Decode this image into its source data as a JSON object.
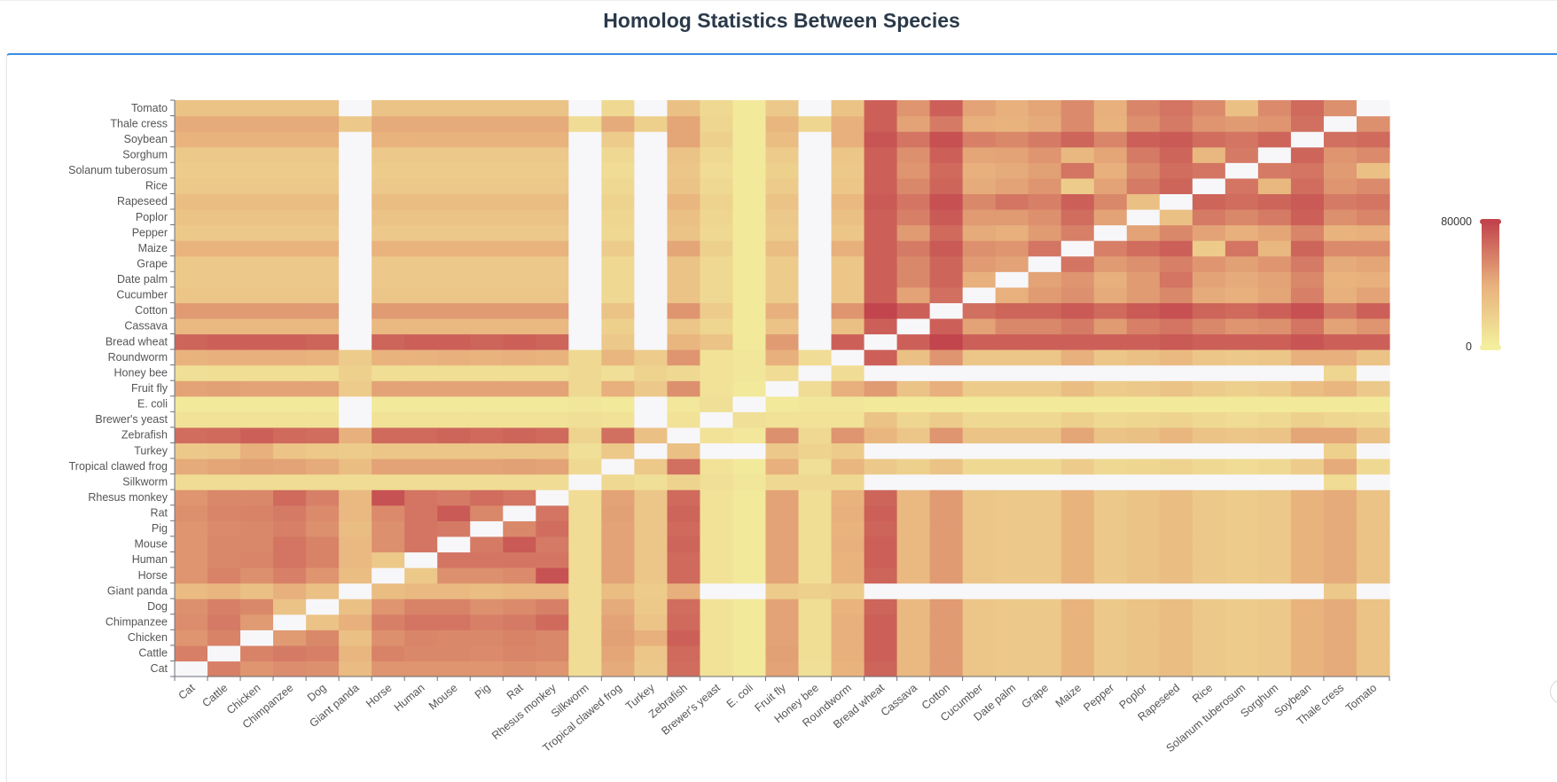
{
  "page": {
    "title": "Homolog Statistics Between Species"
  },
  "colors": {
    "low": "#f3ef9e",
    "mid": "#e8b07c",
    "high": "#c2454d",
    "nodata": "#f7f7fa",
    "accent": "#3a8ee6",
    "label": "#555555"
  },
  "chart_data": {
    "type": "heatmap",
    "title": "Homolog Statistics Between Species",
    "xlabel": "",
    "ylabel": "",
    "species": [
      "Cat",
      "Cattle",
      "Chicken",
      "Chimpanzee",
      "Dog",
      "Giant panda",
      "Horse",
      "Human",
      "Mouse",
      "Pig",
      "Rat",
      "Rhesus monkey",
      "Silkworm",
      "Tropical clawed frog",
      "Turkey",
      "Zebrafish",
      "Brewer's yeast",
      "E. coli",
      "Fruit fly",
      "Honey bee",
      "Roundworm",
      "Bread wheat",
      "Cassava",
      "Cotton",
      "Cucumber",
      "Date palm",
      "Grape",
      "Maize",
      "Pepper",
      "Poplor",
      "Rapeseed",
      "Rice",
      "Solanum tuberosum",
      "Sorghum",
      "Soybean",
      "Thale cress",
      "Tomato"
    ],
    "x_order": "species in listed order, left to right",
    "y_order": "species in listed order, bottom to top (Cat at bottom, Tomato at top)",
    "visual_map": {
      "min": 0,
      "max": 80000,
      "min_label": "0",
      "max_label": "80000",
      "colors": [
        "#f3ef9e",
        "#e8b07c",
        "#c2454d"
      ]
    },
    "matrix": [
      [
        null,
        58,
        50,
        53,
        52,
        33,
        50,
        50,
        50,
        50,
        52,
        50,
        12,
        42,
        24,
        65,
        8,
        4,
        45,
        10,
        38,
        68,
        34,
        48,
        26,
        24,
        24,
        38,
        24,
        28,
        32,
        24,
        22,
        24,
        38,
        42,
        28
      ],
      [
        58,
        null,
        57,
        60,
        58,
        36,
        57,
        55,
        55,
        54,
        56,
        55,
        12,
        44,
        26,
        66,
        8,
        4,
        46,
        11,
        40,
        70,
        34,
        48,
        26,
        24,
        24,
        38,
        24,
        28,
        32,
        24,
        22,
        24,
        38,
        42,
        28
      ],
      [
        50,
        57,
        null,
        48,
        55,
        30,
        52,
        56,
        55,
        55,
        57,
        55,
        12,
        46,
        40,
        70,
        8,
        4,
        45,
        11,
        40,
        70,
        34,
        48,
        26,
        24,
        24,
        38,
        24,
        28,
        32,
        24,
        22,
        24,
        38,
        42,
        28
      ],
      [
        53,
        60,
        48,
        null,
        28,
        40,
        58,
        62,
        62,
        58,
        60,
        66,
        12,
        45,
        27,
        66,
        8,
        4,
        45,
        11,
        40,
        70,
        34,
        48,
        26,
        24,
        24,
        38,
        24,
        28,
        32,
        24,
        22,
        24,
        38,
        42,
        28
      ],
      [
        52,
        58,
        55,
        28,
        null,
        30,
        50,
        57,
        57,
        52,
        54,
        58,
        12,
        42,
        25,
        65,
        8,
        4,
        45,
        11,
        38,
        68,
        34,
        48,
        26,
        24,
        24,
        38,
        24,
        28,
        32,
        24,
        22,
        24,
        38,
        42,
        28
      ],
      [
        33,
        36,
        30,
        40,
        30,
        null,
        32,
        34,
        34,
        32,
        34,
        34,
        12,
        32,
        22,
        40,
        null,
        null,
        22,
        20,
        22,
        null,
        null,
        null,
        null,
        null,
        null,
        null,
        null,
        null,
        null,
        null,
        null,
        null,
        null,
        24,
        null
      ],
      [
        50,
        57,
        52,
        58,
        50,
        32,
        null,
        25,
        52,
        52,
        54,
        75,
        12,
        45,
        26,
        66,
        8,
        4,
        45,
        11,
        38,
        68,
        34,
        48,
        26,
        24,
        24,
        38,
        24,
        28,
        32,
        24,
        22,
        24,
        38,
        42,
        28
      ],
      [
        50,
        55,
        56,
        62,
        57,
        34,
        25,
        null,
        62,
        62,
        62,
        62,
        12,
        45,
        26,
        66,
        8,
        4,
        45,
        11,
        38,
        70,
        34,
        48,
        26,
        24,
        24,
        38,
        24,
        28,
        32,
        24,
        22,
        24,
        38,
        42,
        28
      ],
      [
        50,
        55,
        55,
        62,
        57,
        34,
        52,
        62,
        null,
        60,
        72,
        60,
        12,
        45,
        26,
        68,
        8,
        4,
        45,
        11,
        40,
        70,
        34,
        48,
        26,
        24,
        24,
        38,
        24,
        28,
        32,
        24,
        22,
        24,
        38,
        42,
        28
      ],
      [
        50,
        54,
        55,
        58,
        52,
        32,
        52,
        62,
        60,
        null,
        55,
        65,
        12,
        45,
        26,
        66,
        8,
        4,
        45,
        11,
        38,
        68,
        34,
        48,
        26,
        24,
        24,
        38,
        24,
        28,
        32,
        24,
        22,
        24,
        38,
        42,
        28
      ],
      [
        52,
        56,
        57,
        60,
        54,
        34,
        54,
        62,
        72,
        55,
        null,
        62,
        12,
        46,
        26,
        68,
        8,
        4,
        45,
        11,
        40,
        70,
        34,
        48,
        26,
        24,
        24,
        38,
        24,
        28,
        32,
        24,
        22,
        24,
        38,
        42,
        28
      ],
      [
        50,
        55,
        55,
        66,
        58,
        34,
        75,
        62,
        60,
        65,
        62,
        null,
        12,
        45,
        26,
        66,
        8,
        4,
        45,
        11,
        38,
        68,
        34,
        48,
        26,
        24,
        24,
        38,
        24,
        28,
        32,
        24,
        22,
        24,
        38,
        42,
        28
      ],
      [
        12,
        12,
        12,
        12,
        12,
        12,
        12,
        12,
        12,
        12,
        12,
        12,
        null,
        14,
        10,
        18,
        10,
        6,
        14,
        14,
        14,
        null,
        null,
        null,
        null,
        null,
        null,
        null,
        null,
        null,
        null,
        null,
        null,
        null,
        null,
        12,
        null
      ],
      [
        42,
        44,
        46,
        45,
        42,
        32,
        45,
        45,
        45,
        45,
        46,
        45,
        14,
        null,
        25,
        64,
        8,
        4,
        40,
        10,
        36,
        24,
        20,
        28,
        14,
        14,
        14,
        22,
        14,
        16,
        18,
        14,
        12,
        14,
        22,
        42,
        14
      ],
      [
        24,
        26,
        40,
        27,
        25,
        22,
        26,
        26,
        26,
        26,
        26,
        26,
        10,
        25,
        null,
        30,
        null,
        null,
        24,
        18,
        22,
        null,
        null,
        null,
        null,
        null,
        null,
        null,
        null,
        null,
        null,
        null,
        null,
        null,
        null,
        20,
        null
      ],
      [
        65,
        66,
        70,
        66,
        65,
        40,
        66,
        66,
        68,
        66,
        68,
        66,
        18,
        64,
        30,
        null,
        8,
        5,
        52,
        14,
        50,
        36,
        26,
        50,
        28,
        28,
        28,
        44,
        28,
        30,
        36,
        28,
        26,
        28,
        44,
        44,
        30
      ],
      [
        8,
        8,
        8,
        8,
        8,
        null,
        8,
        8,
        8,
        8,
        8,
        8,
        10,
        8,
        null,
        8,
        null,
        10,
        8,
        8,
        8,
        28,
        16,
        22,
        14,
        14,
        14,
        20,
        14,
        16,
        18,
        14,
        12,
        14,
        20,
        16,
        14
      ],
      [
        4,
        4,
        4,
        4,
        4,
        null,
        4,
        4,
        4,
        4,
        4,
        4,
        6,
        4,
        null,
        5,
        10,
        null,
        4,
        6,
        6,
        4,
        4,
        4,
        4,
        4,
        4,
        4,
        4,
        4,
        4,
        4,
        4,
        4,
        4,
        4,
        4
      ],
      [
        45,
        46,
        45,
        45,
        45,
        22,
        45,
        45,
        45,
        45,
        45,
        45,
        14,
        40,
        24,
        52,
        8,
        4,
        null,
        12,
        40,
        48,
        28,
        40,
        22,
        22,
        22,
        32,
        22,
        24,
        28,
        22,
        20,
        22,
        32,
        36,
        24
      ],
      [
        10,
        11,
        11,
        11,
        11,
        20,
        11,
        11,
        11,
        11,
        11,
        11,
        14,
        10,
        18,
        14,
        8,
        6,
        12,
        null,
        12,
        null,
        null,
        null,
        null,
        null,
        null,
        null,
        null,
        null,
        null,
        null,
        null,
        null,
        null,
        16,
        null
      ],
      [
        38,
        40,
        40,
        40,
        38,
        22,
        38,
        38,
        40,
        38,
        40,
        38,
        14,
        36,
        22,
        50,
        8,
        6,
        40,
        12,
        null,
        70,
        30,
        50,
        26,
        26,
        26,
        40,
        26,
        30,
        34,
        26,
        24,
        26,
        40,
        40,
        28
      ],
      [
        68,
        70,
        70,
        70,
        68,
        null,
        68,
        70,
        70,
        68,
        70,
        68,
        null,
        24,
        null,
        36,
        28,
        4,
        48,
        null,
        70,
        null,
        70,
        80,
        70,
        70,
        70,
        70,
        70,
        70,
        72,
        70,
        70,
        70,
        74,
        70,
        70
      ],
      [
        34,
        34,
        34,
        34,
        34,
        null,
        34,
        34,
        34,
        34,
        34,
        34,
        null,
        20,
        null,
        26,
        16,
        4,
        28,
        null,
        30,
        70,
        null,
        70,
        45,
        55,
        55,
        60,
        48,
        58,
        62,
        55,
        50,
        52,
        62,
        45,
        50
      ],
      [
        48,
        48,
        48,
        48,
        48,
        null,
        48,
        48,
        48,
        48,
        48,
        48,
        null,
        28,
        null,
        50,
        22,
        4,
        40,
        null,
        50,
        80,
        70,
        null,
        64,
        68,
        68,
        72,
        66,
        72,
        76,
        68,
        66,
        70,
        76,
        60,
        70
      ],
      [
        26,
        26,
        26,
        26,
        26,
        null,
        26,
        26,
        26,
        26,
        26,
        26,
        null,
        14,
        null,
        28,
        14,
        4,
        22,
        null,
        26,
        70,
        45,
        64,
        null,
        40,
        48,
        52,
        42,
        48,
        55,
        42,
        40,
        44,
        58,
        40,
        45
      ],
      [
        24,
        24,
        24,
        24,
        24,
        null,
        24,
        24,
        24,
        24,
        24,
        24,
        null,
        14,
        null,
        28,
        14,
        4,
        22,
        null,
        26,
        70,
        55,
        68,
        40,
        null,
        45,
        50,
        40,
        48,
        62,
        45,
        42,
        45,
        55,
        38,
        40
      ],
      [
        24,
        24,
        24,
        24,
        24,
        null,
        24,
        24,
        24,
        24,
        24,
        24,
        null,
        14,
        null,
        28,
        14,
        4,
        22,
        null,
        26,
        70,
        55,
        68,
        48,
        45,
        null,
        62,
        48,
        52,
        58,
        50,
        46,
        50,
        60,
        42,
        44
      ],
      [
        38,
        38,
        38,
        38,
        38,
        null,
        38,
        38,
        38,
        38,
        38,
        38,
        null,
        22,
        null,
        44,
        20,
        4,
        32,
        null,
        40,
        70,
        60,
        72,
        52,
        50,
        62,
        null,
        58,
        65,
        70,
        22,
        62,
        35,
        68,
        54,
        54
      ],
      [
        24,
        24,
        24,
        24,
        24,
        null,
        24,
        24,
        24,
        24,
        24,
        24,
        null,
        14,
        null,
        28,
        14,
        4,
        22,
        null,
        26,
        70,
        48,
        66,
        42,
        40,
        48,
        58,
        null,
        45,
        55,
        45,
        40,
        44,
        56,
        38,
        40
      ],
      [
        28,
        28,
        28,
        28,
        28,
        null,
        28,
        28,
        28,
        28,
        28,
        28,
        null,
        16,
        null,
        30,
        16,
        4,
        24,
        null,
        30,
        70,
        58,
        72,
        48,
        48,
        52,
        65,
        45,
        null,
        30,
        60,
        55,
        60,
        70,
        52,
        56
      ],
      [
        32,
        32,
        32,
        32,
        32,
        null,
        32,
        32,
        32,
        32,
        32,
        32,
        null,
        18,
        null,
        36,
        18,
        4,
        28,
        null,
        34,
        72,
        62,
        76,
        55,
        62,
        58,
        70,
        55,
        30,
        null,
        68,
        65,
        68,
        72,
        60,
        62
      ],
      [
        24,
        24,
        24,
        24,
        24,
        null,
        24,
        24,
        24,
        24,
        24,
        24,
        null,
        14,
        null,
        28,
        14,
        4,
        22,
        null,
        26,
        70,
        55,
        68,
        42,
        45,
        50,
        22,
        45,
        60,
        68,
        null,
        62,
        35,
        65,
        50,
        54
      ],
      [
        22,
        22,
        22,
        22,
        22,
        null,
        22,
        22,
        22,
        22,
        22,
        22,
        null,
        12,
        null,
        26,
        12,
        4,
        20,
        null,
        24,
        70,
        50,
        66,
        40,
        42,
        46,
        62,
        40,
        55,
        65,
        62,
        null,
        60,
        62,
        48,
        30
      ],
      [
        24,
        24,
        24,
        24,
        24,
        null,
        24,
        24,
        24,
        24,
        24,
        24,
        null,
        14,
        null,
        28,
        14,
        4,
        22,
        null,
        26,
        70,
        52,
        70,
        44,
        45,
        50,
        35,
        44,
        60,
        68,
        35,
        60,
        null,
        68,
        50,
        54
      ],
      [
        38,
        38,
        38,
        38,
        38,
        null,
        38,
        38,
        38,
        38,
        38,
        38,
        null,
        22,
        null,
        44,
        20,
        4,
        32,
        null,
        40,
        74,
        62,
        76,
        58,
        55,
        60,
        68,
        56,
        70,
        72,
        65,
        62,
        68,
        null,
        64,
        66
      ],
      [
        42,
        42,
        42,
        42,
        42,
        24,
        42,
        42,
        42,
        42,
        42,
        42,
        12,
        42,
        20,
        44,
        16,
        4,
        36,
        16,
        40,
        70,
        45,
        60,
        40,
        38,
        42,
        54,
        38,
        52,
        60,
        50,
        48,
        50,
        64,
        null,
        52
      ],
      [
        28,
        28,
        28,
        28,
        28,
        null,
        28,
        28,
        28,
        28,
        28,
        28,
        null,
        14,
        null,
        30,
        14,
        4,
        24,
        null,
        28,
        70,
        50,
        70,
        45,
        40,
        44,
        54,
        40,
        56,
        62,
        54,
        30,
        54,
        66,
        52,
        null
      ]
    ]
  }
}
